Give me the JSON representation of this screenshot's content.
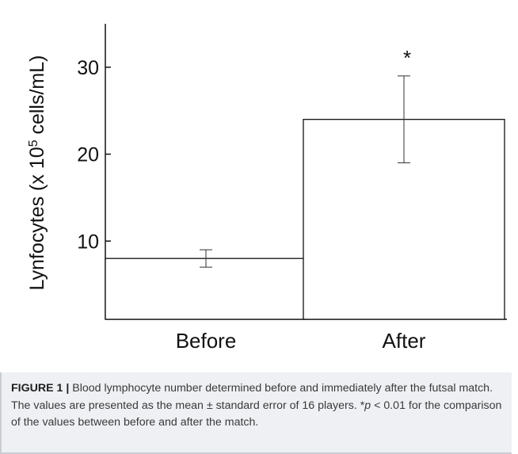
{
  "chart_data": {
    "type": "bar",
    "categories": [
      "Before",
      "After"
    ],
    "values": [
      8,
      24
    ],
    "errors": [
      1,
      5
    ],
    "significance": [
      "",
      "*"
    ],
    "ylabel_prefix": "Lynfocytes (x 10",
    "ylabel_exponent": "5",
    "ylabel_suffix": " cells/mL)",
    "yticks": [
      10,
      20,
      30
    ],
    "ylim": [
      1,
      35
    ],
    "grid": false
  },
  "caption": {
    "label": "FIGURE 1 |",
    "part1": " Blood lymphocyte number determined before and immediately after the futsal match. The values are presented as the mean ± standard error of 16 players. *",
    "p_symbol": "p",
    "part2": " < 0.01 for the comparison of the values between before and after the match."
  }
}
